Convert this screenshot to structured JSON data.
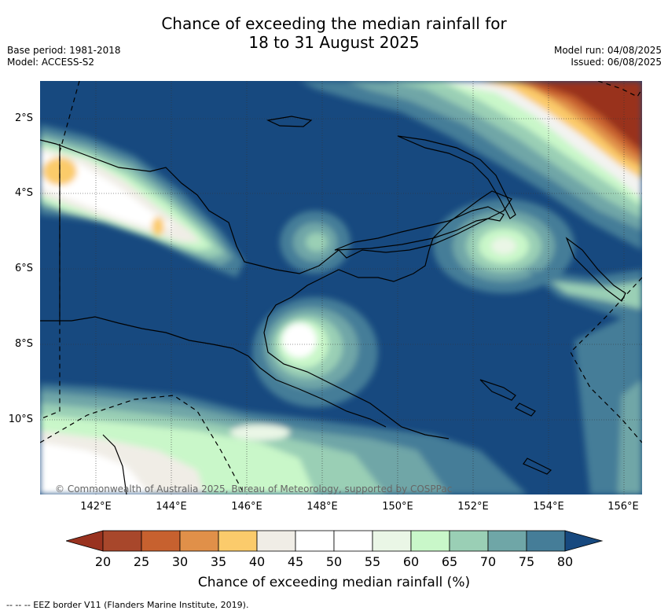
{
  "header": {
    "title_line1": "Chance of exceeding the median rainfall for",
    "title_line2": "18 to 31 August 2025",
    "base_period": "Base period: 1981-2018",
    "model": "Model: ACCESS-S2",
    "model_run": "Model run: 04/08/2025",
    "issued": "Issued: 06/08/2025"
  },
  "map": {
    "lat_labels": [
      "2°S",
      "4°S",
      "6°S",
      "8°S",
      "10°S"
    ],
    "lon_labels": [
      "142°E",
      "144°E",
      "146°E",
      "148°E",
      "150°E",
      "152°E",
      "154°E",
      "156°E"
    ],
    "copyright": "© Commonwealth of Australia 2025, Bureau of Meteorology, supported by COSPPac"
  },
  "colorbar": {
    "ticks": [
      "20",
      "25",
      "30",
      "35",
      "40",
      "45",
      "50",
      "55",
      "60",
      "65",
      "70",
      "75",
      "80"
    ],
    "colors": [
      "#a8472b",
      "#c7612f",
      "#e09049",
      "#fbcb6b",
      "#f0ede6",
      "#ffffff",
      "#ffffff",
      "#eaf6e6",
      "#c9f7c9",
      "#9acfb5",
      "#6fa6a7",
      "#457d98"
    ],
    "low_color": "#99321f",
    "high_color": "#17497f",
    "label": "Chance of exceeding median rainfall (%)"
  },
  "footer": {
    "eez_note": "--  --  -- EEZ border V11 (Flanders Marine Institute, 2019)."
  }
}
